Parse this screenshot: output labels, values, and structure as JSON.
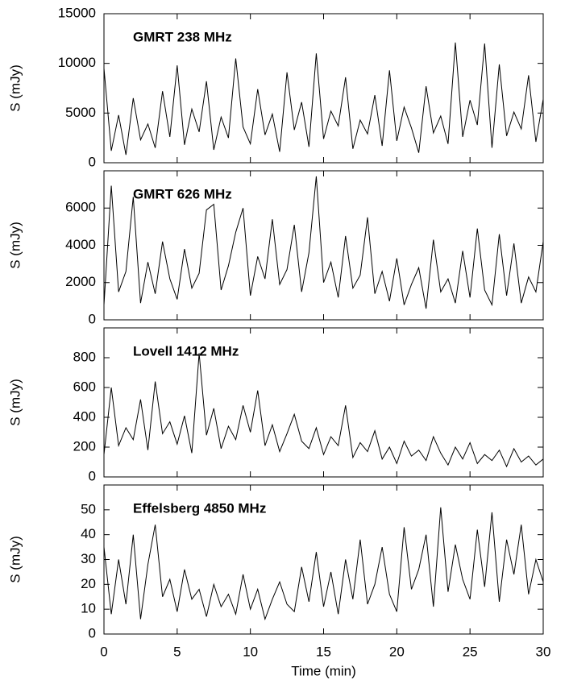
{
  "chart_data": [
    {
      "type": "line",
      "annotation": "GMRT 238 MHz",
      "ylabel": "S (mJy)",
      "x": [
        0,
        0.5,
        1,
        1.5,
        2,
        2.5,
        3,
        3.5,
        4,
        4.5,
        5,
        5.5,
        6,
        6.5,
        7,
        7.5,
        8,
        8.5,
        9,
        9.5,
        10,
        10.5,
        11,
        11.5,
        12,
        12.5,
        13,
        13.5,
        14,
        14.5,
        15,
        15.5,
        16,
        16.5,
        17,
        17.5,
        18,
        18.5,
        19,
        19.5,
        20,
        20.5,
        21,
        21.5,
        22,
        22.5,
        23,
        23.5,
        24,
        24.5,
        25,
        25.5,
        26,
        26.5,
        27,
        27.5,
        28,
        28.5,
        29,
        29.5,
        30
      ],
      "series": [
        {
          "color": "#000000",
          "values": [
            9500,
            1200,
            4800,
            800,
            6500,
            2300,
            3900,
            1500,
            7200,
            2600,
            9800,
            1800,
            5400,
            3100,
            8200,
            1300,
            4600,
            2500,
            10500,
            3600,
            1900,
            7400,
            2800,
            4900,
            1100,
            9100,
            3300,
            6100,
            1600,
            11000,
            2400,
            5200,
            3700,
            8600,
            1400,
            4300,
            2900,
            6800,
            1700,
            9300,
            2200,
            5600,
            3500,
            1000,
            7700,
            3000,
            4700,
            1900,
            12100,
            2600,
            6300,
            3800,
            12000,
            1500,
            9900,
            2700,
            5100,
            3400,
            8800,
            2100,
            6400
          ]
        }
      ],
      "xlim": [
        0,
        30
      ],
      "xticks": [
        0,
        5,
        10,
        15,
        20,
        25,
        30
      ],
      "ylim": [
        0,
        15000
      ],
      "yticks": [
        0,
        5000,
        10000,
        15000
      ]
    },
    {
      "type": "line",
      "annotation": "GMRT 626 MHz",
      "ylabel": "S (mJy)",
      "x": [
        0,
        0.5,
        1,
        1.5,
        2,
        2.5,
        3,
        3.5,
        4,
        4.5,
        5,
        5.5,
        6,
        6.5,
        7,
        7.5,
        8,
        8.5,
        9,
        9.5,
        10,
        10.5,
        11,
        11.5,
        12,
        12.5,
        13,
        13.5,
        14,
        14.5,
        15,
        15.5,
        16,
        16.5,
        17,
        17.5,
        18,
        18.5,
        19,
        19.5,
        20,
        20.5,
        21,
        21.5,
        22,
        22.5,
        23,
        23.5,
        24,
        24.5,
        25,
        25.5,
        26,
        26.5,
        27,
        27.5,
        28,
        28.5,
        29,
        29.5,
        30
      ],
      "series": [
        {
          "color": "#000000",
          "values": [
            800,
            7200,
            1500,
            2600,
            6600,
            900,
            3100,
            1400,
            4200,
            2200,
            1100,
            3800,
            1700,
            2500,
            5900,
            6200,
            1600,
            2900,
            4700,
            6000,
            1300,
            3400,
            2200,
            5400,
            1900,
            2700,
            5100,
            1500,
            3600,
            7700,
            2000,
            3100,
            1200,
            4500,
            1700,
            2400,
            5500,
            1400,
            2600,
            1000,
            3300,
            800,
            1900,
            2800,
            600,
            4300,
            1500,
            2200,
            900,
            3700,
            1200,
            4900,
            1600,
            800,
            4600,
            1300,
            4100,
            900,
            2300,
            1500,
            4200
          ]
        }
      ],
      "xlim": [
        0,
        30
      ],
      "xticks": [
        0,
        5,
        10,
        15,
        20,
        25,
        30
      ],
      "ylim": [
        0,
        8000
      ],
      "yticks": [
        0,
        2000,
        4000,
        6000
      ]
    },
    {
      "type": "line",
      "annotation": "Lovell 1412 MHz",
      "ylabel": "S (mJy)",
      "x": [
        0,
        0.5,
        1,
        1.5,
        2,
        2.5,
        3,
        3.5,
        4,
        4.5,
        5,
        5.5,
        6,
        6.5,
        7,
        7.5,
        8,
        8.5,
        9,
        9.5,
        10,
        10.5,
        11,
        11.5,
        12,
        12.5,
        13,
        13.5,
        14,
        14.5,
        15,
        15.5,
        16,
        16.5,
        17,
        17.5,
        18,
        18.5,
        19,
        19.5,
        20,
        20.5,
        21,
        21.5,
        22,
        22.5,
        23,
        23.5,
        24,
        24.5,
        25,
        25.5,
        26,
        26.5,
        27,
        27.5,
        28,
        28.5,
        29,
        29.5,
        30
      ],
      "series": [
        {
          "color": "#000000",
          "values": [
            150,
            600,
            210,
            330,
            250,
            520,
            180,
            640,
            290,
            370,
            220,
            410,
            160,
            830,
            280,
            460,
            190,
            340,
            250,
            480,
            300,
            580,
            210,
            350,
            170,
            290,
            420,
            240,
            190,
            330,
            150,
            270,
            210,
            480,
            130,
            230,
            170,
            310,
            120,
            200,
            90,
            240,
            140,
            180,
            110,
            270,
            160,
            80,
            200,
            120,
            230,
            90,
            150,
            110,
            180,
            70,
            190,
            100,
            140,
            80,
            120
          ]
        }
      ],
      "xlim": [
        0,
        30
      ],
      "xticks": [
        0,
        5,
        10,
        15,
        20,
        25,
        30
      ],
      "ylim": [
        0,
        1000
      ],
      "yticks": [
        0,
        200,
        400,
        600,
        800
      ]
    },
    {
      "type": "line",
      "annotation": "Effelsberg 4850 MHz",
      "ylabel": "S (mJy)",
      "xlabel": "Time (min)",
      "x": [
        0,
        0.5,
        1,
        1.5,
        2,
        2.5,
        3,
        3.5,
        4,
        4.5,
        5,
        5.5,
        6,
        6.5,
        7,
        7.5,
        8,
        8.5,
        9,
        9.5,
        10,
        10.5,
        11,
        11.5,
        12,
        12.5,
        13,
        13.5,
        14,
        14.5,
        15,
        15.5,
        16,
        16.5,
        17,
        17.5,
        18,
        18.5,
        19,
        19.5,
        20,
        20.5,
        21,
        21.5,
        22,
        22.5,
        23,
        23.5,
        24,
        24.5,
        25,
        25.5,
        26,
        26.5,
        27,
        27.5,
        28,
        28.5,
        29,
        29.5,
        30
      ],
      "series": [
        {
          "color": "#000000",
          "values": [
            35,
            8,
            30,
            12,
            40,
            6,
            28,
            44,
            15,
            22,
            9,
            26,
            14,
            18,
            7,
            20,
            11,
            16,
            8,
            24,
            10,
            18,
            6,
            14,
            21,
            12,
            9,
            27,
            13,
            33,
            11,
            25,
            8,
            30,
            14,
            38,
            12,
            20,
            35,
            16,
            9,
            43,
            18,
            26,
            40,
            11,
            51,
            17,
            36,
            22,
            14,
            42,
            19,
            49,
            13,
            38,
            24,
            44,
            16,
            30,
            21
          ]
        }
      ],
      "xlim": [
        0,
        30
      ],
      "xticks": [
        0,
        5,
        10,
        15,
        20,
        25,
        30
      ],
      "ylim": [
        0,
        60
      ],
      "yticks": [
        0,
        10,
        20,
        30,
        40,
        50
      ]
    }
  ]
}
